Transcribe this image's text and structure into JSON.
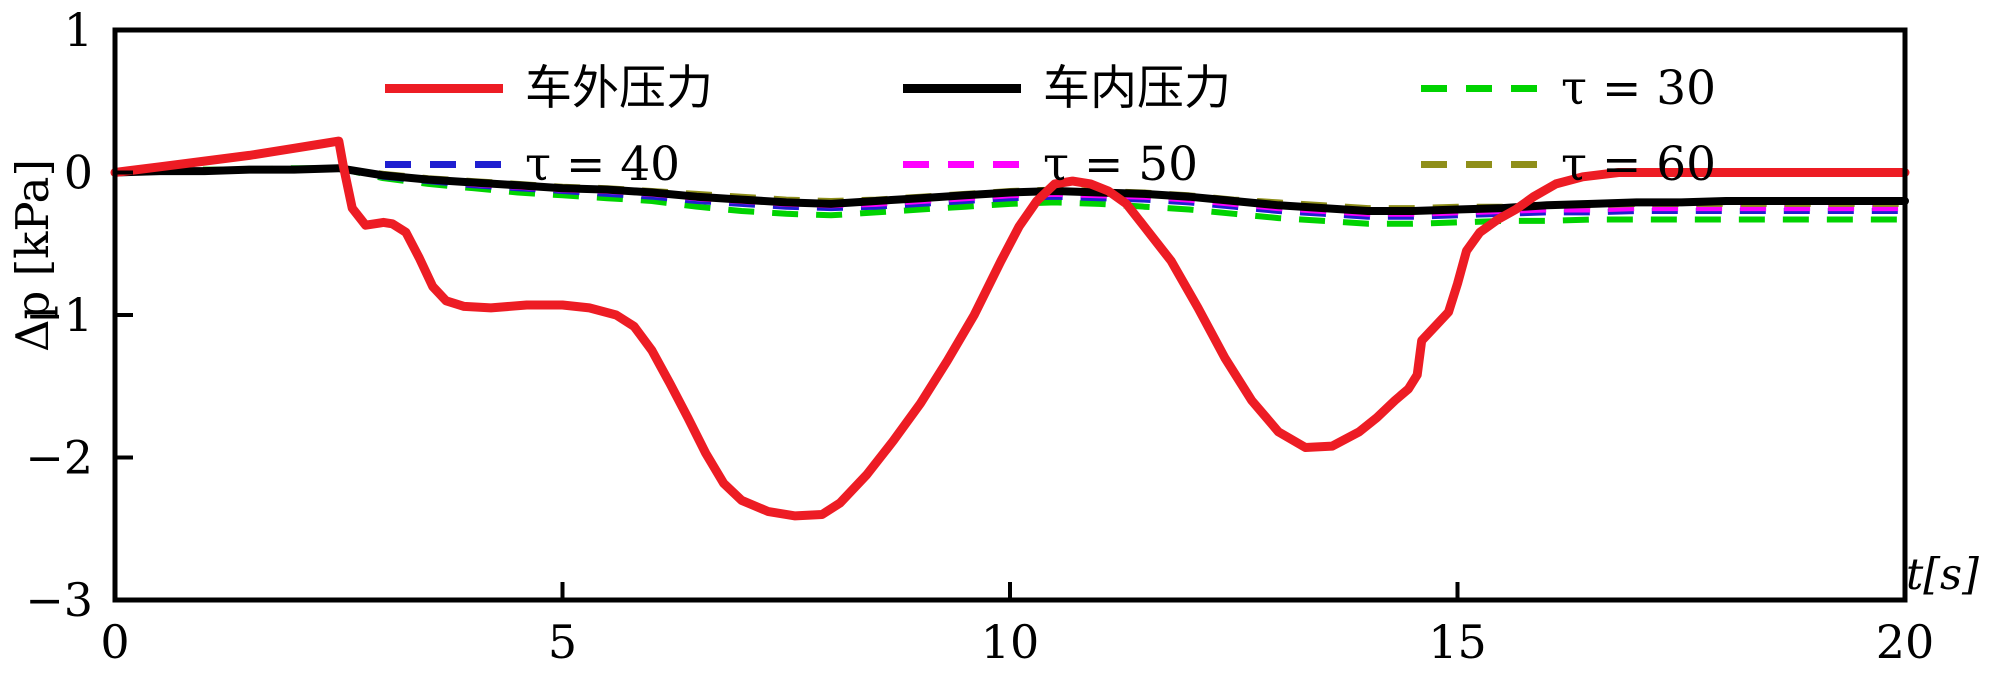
{
  "chart_data": {
    "type": "line",
    "title": "",
    "xlabel": "t[s]",
    "ylabel": "Δp [kPa]",
    "xlim": [
      0,
      20
    ],
    "ylim": [
      -3,
      1
    ],
    "xticks": [
      0,
      5,
      10,
      15,
      20
    ],
    "xtick_labels": [
      "0",
      "5",
      "10",
      "15",
      "20"
    ],
    "yticks": [
      1,
      0,
      -1,
      -2,
      -3
    ],
    "ytick_labels": [
      "1",
      "0",
      "−1",
      "−2",
      "−3"
    ],
    "grid": false,
    "legend_position": "top-inside",
    "draw_order": [
      2,
      3,
      4,
      5,
      1,
      0
    ],
    "series": [
      {
        "name": "车外压力",
        "color": "#ed1c24",
        "style": "solid",
        "width": 9,
        "x": [
          0,
          0.5,
          1,
          1.5,
          2,
          2.3,
          2.5,
          2.55,
          2.65,
          2.8,
          3.0,
          3.1,
          3.25,
          3.4,
          3.55,
          3.7,
          3.9,
          4.2,
          4.6,
          5.0,
          5.3,
          5.6,
          5.8,
          6.0,
          6.2,
          6.4,
          6.6,
          6.8,
          7.0,
          7.3,
          7.6,
          7.9,
          8.1,
          8.4,
          8.7,
          9.0,
          9.3,
          9.6,
          9.9,
          10.1,
          10.3,
          10.5,
          10.7,
          10.9,
          11.1,
          11.3,
          11.5,
          11.8,
          12.1,
          12.4,
          12.7,
          13.0,
          13.3,
          13.6,
          13.9,
          14.1,
          14.3,
          14.45,
          14.55,
          14.6,
          14.75,
          14.9,
          15.0,
          15.1,
          15.25,
          15.45,
          15.65,
          15.85,
          16.1,
          16.4,
          16.8,
          17.2,
          18,
          19,
          20
        ],
        "y": [
          0,
          0.04,
          0.08,
          0.12,
          0.17,
          0.2,
          0.22,
          0.05,
          -0.25,
          -0.37,
          -0.35,
          -0.36,
          -0.42,
          -0.6,
          -0.8,
          -0.9,
          -0.94,
          -0.95,
          -0.93,
          -0.93,
          -0.95,
          -1.0,
          -1.08,
          -1.25,
          -1.48,
          -1.72,
          -1.97,
          -2.18,
          -2.3,
          -2.38,
          -2.41,
          -2.4,
          -2.32,
          -2.12,
          -1.88,
          -1.62,
          -1.32,
          -1.0,
          -0.62,
          -0.38,
          -0.2,
          -0.08,
          -0.06,
          -0.08,
          -0.13,
          -0.22,
          -0.38,
          -0.62,
          -0.95,
          -1.3,
          -1.6,
          -1.82,
          -1.93,
          -1.92,
          -1.82,
          -1.72,
          -1.6,
          -1.52,
          -1.42,
          -1.18,
          -1.08,
          -0.98,
          -0.78,
          -0.55,
          -0.42,
          -0.33,
          -0.26,
          -0.17,
          -0.08,
          -0.03,
          0,
          0,
          0,
          0,
          0
        ]
      },
      {
        "name": "车内压力",
        "color": "#000000",
        "style": "solid",
        "width": 8,
        "x": [
          0,
          0.5,
          1,
          1.5,
          2,
          2.5,
          3,
          3.5,
          4,
          4.5,
          5,
          5.5,
          6,
          6.5,
          7,
          7.5,
          8,
          8.5,
          9,
          9.5,
          10,
          10.5,
          11,
          11.5,
          12,
          12.5,
          13,
          13.5,
          14,
          14.5,
          15,
          15.5,
          16,
          16.5,
          17,
          17.5,
          18,
          18.5,
          19,
          19.5,
          20
        ],
        "y": [
          0,
          0.01,
          0.01,
          0.02,
          0.02,
          0.03,
          -0.02,
          -0.05,
          -0.07,
          -0.09,
          -0.11,
          -0.12,
          -0.14,
          -0.17,
          -0.19,
          -0.21,
          -0.22,
          -0.2,
          -0.18,
          -0.16,
          -0.14,
          -0.13,
          -0.14,
          -0.15,
          -0.17,
          -0.2,
          -0.23,
          -0.25,
          -0.27,
          -0.27,
          -0.26,
          -0.25,
          -0.23,
          -0.22,
          -0.21,
          -0.21,
          -0.2,
          -0.2,
          -0.2,
          -0.2,
          -0.2
        ]
      },
      {
        "name": "τ = 30",
        "color": "#00d300",
        "style": "dashed",
        "width": 6,
        "x": [
          0,
          0.5,
          1,
          1.5,
          2,
          2.5,
          3,
          3.5,
          4,
          4.5,
          5,
          5.5,
          6,
          6.5,
          7,
          7.5,
          8,
          8.5,
          9,
          9.5,
          10,
          10.5,
          11,
          11.5,
          12,
          12.5,
          13,
          13.5,
          14,
          14.5,
          15,
          15.5,
          16,
          16.5,
          17,
          17.5,
          18,
          18.5,
          19,
          19.5,
          20
        ],
        "y": [
          0,
          0.01,
          0.02,
          0.02,
          0.03,
          0.03,
          -0.04,
          -0.08,
          -0.11,
          -0.14,
          -0.16,
          -0.18,
          -0.2,
          -0.24,
          -0.27,
          -0.29,
          -0.3,
          -0.28,
          -0.26,
          -0.24,
          -0.22,
          -0.21,
          -0.22,
          -0.24,
          -0.26,
          -0.29,
          -0.32,
          -0.34,
          -0.36,
          -0.36,
          -0.35,
          -0.34,
          -0.34,
          -0.33,
          -0.33,
          -0.33,
          -0.33,
          -0.33,
          -0.33,
          -0.33,
          -0.33
        ]
      },
      {
        "name": "τ = 40",
        "color": "#1f1fd0",
        "style": "dashed",
        "width": 6,
        "x": [
          0,
          0.5,
          1,
          1.5,
          2,
          2.5,
          3,
          3.5,
          4,
          4.5,
          5,
          5.5,
          6,
          6.5,
          7,
          7.5,
          8,
          8.5,
          9,
          9.5,
          10,
          10.5,
          11,
          11.5,
          12,
          12.5,
          13,
          13.5,
          14,
          14.5,
          15,
          15.5,
          16,
          16.5,
          17,
          17.5,
          18,
          18.5,
          19,
          19.5,
          20
        ],
        "y": [
          0,
          0.01,
          0.01,
          0.02,
          0.02,
          0.03,
          -0.03,
          -0.06,
          -0.09,
          -0.11,
          -0.13,
          -0.15,
          -0.17,
          -0.2,
          -0.22,
          -0.24,
          -0.25,
          -0.24,
          -0.22,
          -0.2,
          -0.18,
          -0.17,
          -0.18,
          -0.19,
          -0.21,
          -0.24,
          -0.27,
          -0.29,
          -0.31,
          -0.31,
          -0.3,
          -0.29,
          -0.28,
          -0.28,
          -0.27,
          -0.27,
          -0.27,
          -0.27,
          -0.27,
          -0.27,
          -0.27
        ]
      },
      {
        "name": "τ = 50",
        "color": "#ff00ff",
        "style": "dashed",
        "width": 6,
        "x": [
          0,
          0.5,
          1,
          1.5,
          2,
          2.5,
          3,
          3.5,
          4,
          4.5,
          5,
          5.5,
          6,
          6.5,
          7,
          7.5,
          8,
          8.5,
          9,
          9.5,
          10,
          10.5,
          11,
          11.5,
          12,
          12.5,
          13,
          13.5,
          14,
          14.5,
          15,
          15.5,
          16,
          16.5,
          17,
          17.5,
          18,
          18.5,
          19,
          19.5,
          20
        ],
        "y": [
          0,
          0.01,
          0.01,
          0.02,
          0.02,
          0.03,
          -0.02,
          -0.05,
          -0.08,
          -0.1,
          -0.12,
          -0.13,
          -0.15,
          -0.18,
          -0.2,
          -0.22,
          -0.23,
          -0.22,
          -0.2,
          -0.18,
          -0.16,
          -0.15,
          -0.16,
          -0.17,
          -0.19,
          -0.22,
          -0.25,
          -0.27,
          -0.29,
          -0.29,
          -0.28,
          -0.27,
          -0.26,
          -0.26,
          -0.25,
          -0.25,
          -0.25,
          -0.25,
          -0.25,
          -0.25,
          -0.25
        ]
      },
      {
        "name": "τ = 60",
        "color": "#8f8f1a",
        "style": "dashed",
        "width": 6,
        "x": [
          0,
          0.5,
          1,
          1.5,
          2,
          2.5,
          3,
          3.5,
          4,
          4.5,
          5,
          5.5,
          6,
          6.5,
          7,
          7.5,
          8,
          8.5,
          9,
          9.5,
          10,
          10.5,
          11,
          11.5,
          12,
          12.5,
          13,
          13.5,
          14,
          14.5,
          15,
          15.5,
          16,
          16.5,
          17,
          17.5,
          18,
          18.5,
          19,
          19.5,
          20
        ],
        "y": [
          0,
          0.01,
          0.01,
          0.02,
          0.02,
          0.03,
          -0.01,
          -0.04,
          -0.06,
          -0.08,
          -0.1,
          -0.11,
          -0.13,
          -0.15,
          -0.17,
          -0.19,
          -0.2,
          -0.19,
          -0.17,
          -0.15,
          -0.13,
          -0.12,
          -0.13,
          -0.14,
          -0.16,
          -0.19,
          -0.21,
          -0.23,
          -0.25,
          -0.25,
          -0.24,
          -0.24,
          -0.23,
          -0.23,
          -0.22,
          -0.22,
          -0.22,
          -0.22,
          -0.22,
          -0.22,
          -0.22
        ]
      }
    ]
  }
}
